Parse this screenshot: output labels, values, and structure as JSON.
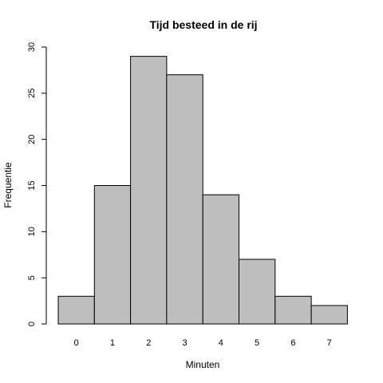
{
  "chart_data": {
    "type": "bar",
    "title": "Tijd besteed in de rij",
    "xlabel": "Minuten",
    "ylabel": "Frequentie",
    "categories": [
      "0",
      "1",
      "2",
      "3",
      "4",
      "5",
      "6",
      "7"
    ],
    "values": [
      3,
      15,
      29,
      27,
      14,
      7,
      3,
      2
    ],
    "ylim": [
      0,
      30
    ],
    "yticks": [
      "0",
      "5",
      "10",
      "15",
      "20",
      "25",
      "30"
    ],
    "grid": false,
    "bar_fill": "#bebebe",
    "bar_stroke": "#000000"
  }
}
